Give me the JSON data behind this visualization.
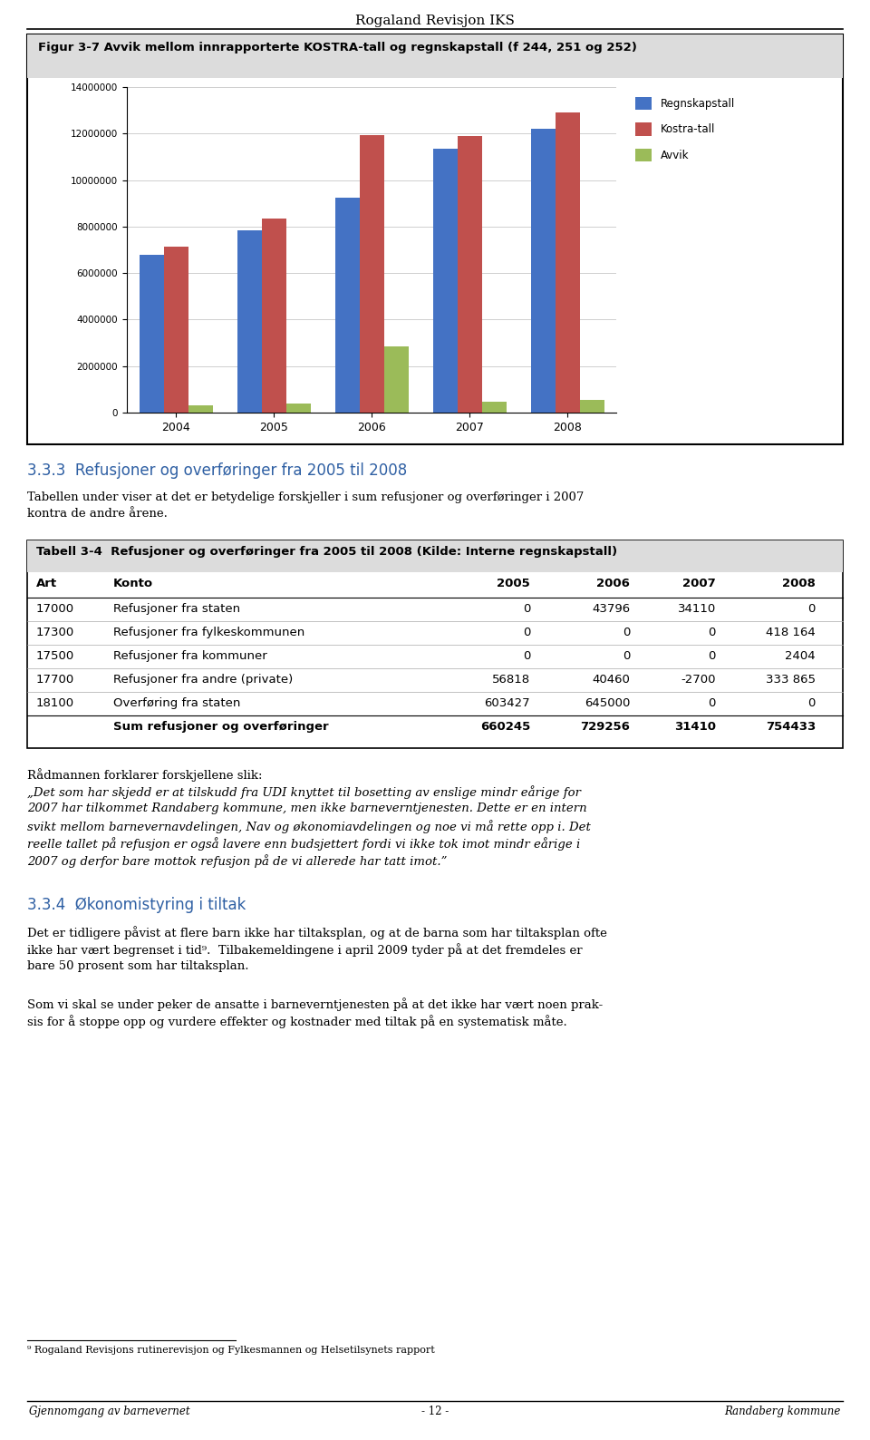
{
  "page_title": "Rogaland Revisjon IKS",
  "fig_title": "Figur 3-7 Avvik mellom innrapporterte KOSTRA-tall og regnskapstall (f 244, 251 og 252)",
  "chart_years": [
    "2004",
    "2005",
    "2006",
    "2007",
    "2008"
  ],
  "regnskapstall": [
    6800000,
    7850000,
    9250000,
    11350000,
    12200000
  ],
  "kostratall": [
    7150000,
    8350000,
    11950000,
    11900000,
    12900000
  ],
  "avvik": [
    300000,
    400000,
    2850000,
    450000,
    550000
  ],
  "color_regnskapstall": "#4472C4",
  "color_kostratall": "#C0504D",
  "color_avvik": "#9BBB59",
  "chart_ylim": [
    0,
    14000000
  ],
  "chart_yticks": [
    0,
    2000000,
    4000000,
    6000000,
    8000000,
    10000000,
    12000000,
    14000000
  ],
  "section_title": "3.3.3  Refusjoner og overføringer fra 2005 til 2008",
  "section_body_line1": "Tabellen under viser at det er betydelige forskjeller i sum refusjoner og overføringer i 2007",
  "section_body_line2": "kontra de andre årene.",
  "table_title": "Tabell 3-4  Refusjoner og overføringer fra 2005 til 2008 (Kilde: Interne regnskapstall)",
  "table_headers": [
    "Art",
    "Konto",
    "2005",
    "2006",
    "2007",
    "2008"
  ],
  "table_rows": [
    [
      "17000",
      "Refusjoner fra staten",
      "0",
      "43796",
      "34110",
      "0"
    ],
    [
      "17300",
      "Refusjoner fra fylkeskommunen",
      "0",
      "0",
      "0",
      "418 164"
    ],
    [
      "17500",
      "Refusjoner fra kommuner",
      "0",
      "0",
      "0",
      "2404"
    ],
    [
      "17700",
      "Refusjoner fra andre (private)",
      "56818",
      "40460",
      "-2700",
      "333 865"
    ],
    [
      "18100",
      "Overføring fra staten",
      "603427",
      "645000",
      "0",
      "0"
    ],
    [
      "",
      "Sum refusjoner og overføringer",
      "660245",
      "729256",
      "31410",
      "754433"
    ]
  ],
  "radmann_lines": [
    "Rådmannen forklarer forskjellene slik:",
    "„Det som har skjedd er at tilskudd fra UDI knyttet til bosetting av enslige mindr eårige for",
    "2007 har tilkommet Randaberg kommune, men ikke barneverntjenesten. Dette er en intern",
    "svikt mellom barnevernavdelingen, Nav og økonomiavdelingen og noe vi må rette opp i. Det",
    "reelle tallet på refusjon er også lavere enn budsjettert fordi vi ikke tok imot mindr eårige i",
    "2007 og derfor bare mottok refusjon på de vi allerede har tatt imot.”"
  ],
  "section2_title": "3.3.4  Økonomistyring i tiltak",
  "section2_body1_lines": [
    "Det er tidligere påvist at flere barn ikke har tiltaksplan, og at de barna som har tiltaksplan ofte",
    "ikke har vært begrenset i tid⁹.  Tilbakemeldingene i april 2009 tyder på at det fremdeles er",
    "bare 50 prosent som har tiltaksplan."
  ],
  "section2_body2_lines": [
    "Som vi skal se under peker de ansatte i barneverntjenesten på at det ikke har vært noen prak-",
    "sis for å stoppe opp og vurdere effekter og kostnader med tiltak på en systematisk måte."
  ],
  "footnote": "⁹ Rogaland Revisjons rutinerevisjon og Fylkesmannen og Helsetilsynets rapport",
  "footer_left": "Gjennomgang av barnevernet",
  "footer_center": "- 12 -",
  "footer_right": "Randaberg kommune",
  "bg_color": "#FFFFFF",
  "gray_bg": "#DCDCDC",
  "light_bg": "#F0F0F0",
  "border_color": "#000000",
  "blue_heading": "#2E5FA3",
  "text_color": "#000000"
}
